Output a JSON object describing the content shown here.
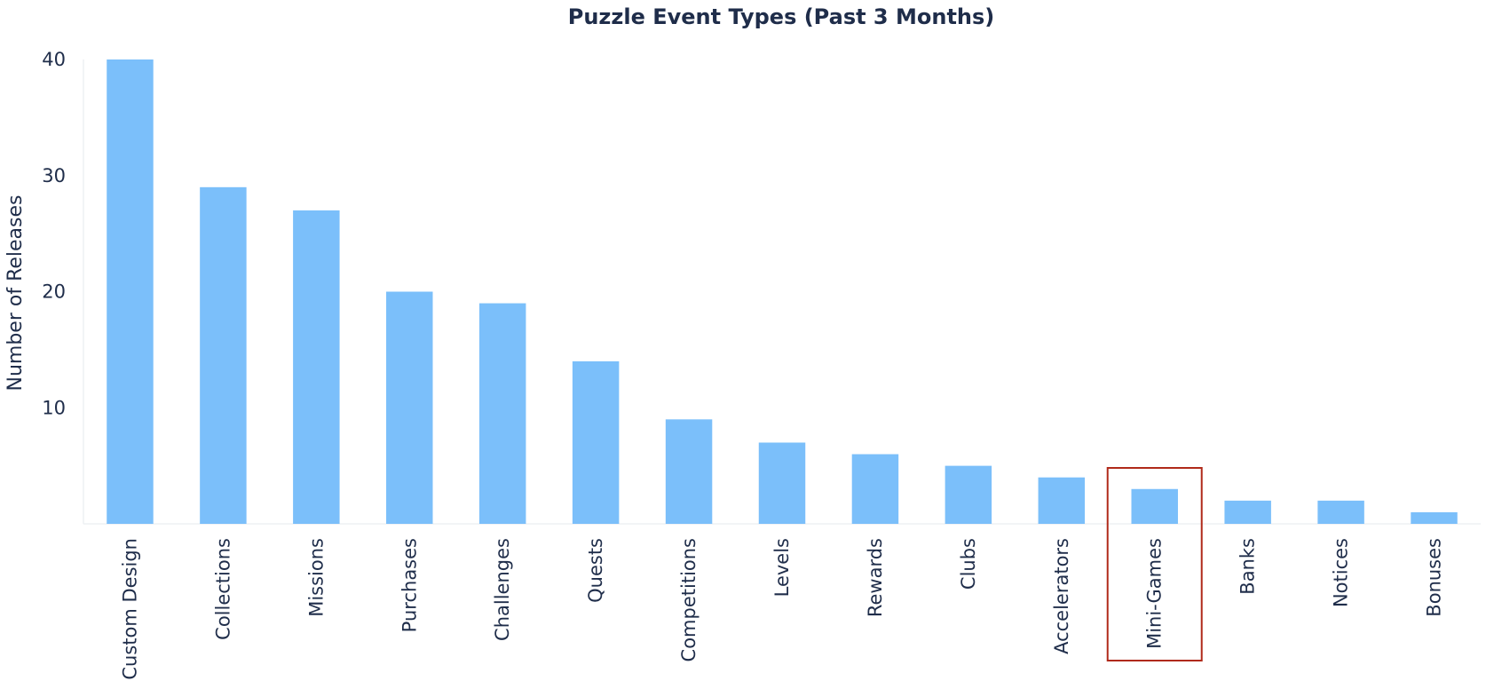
{
  "chart_data": {
    "type": "bar",
    "title": "Puzzle Event Types (Past 3 Months)",
    "xlabel": "",
    "ylabel": "Number of Releases",
    "ylim": [
      0,
      40
    ],
    "yticks": [
      10,
      20,
      30,
      40
    ],
    "grid": false,
    "categories": [
      "Custom Design",
      "Collections",
      "Missions",
      "Purchases",
      "Challenges",
      "Quests",
      "Competitions",
      "Levels",
      "Rewards",
      "Clubs",
      "Accelerators",
      "Mini-Games",
      "Banks",
      "Notices",
      "Bonuses"
    ],
    "values": [
      40,
      29,
      27,
      20,
      19,
      14,
      9,
      7,
      6,
      5,
      4,
      3,
      2,
      2,
      1
    ],
    "highlighted_category": "Mini-Games",
    "colors": {
      "bar": "#7bbffa",
      "highlight": "#b02a1a",
      "text": "#1f2d4a",
      "axis": "#eef0f3"
    }
  }
}
